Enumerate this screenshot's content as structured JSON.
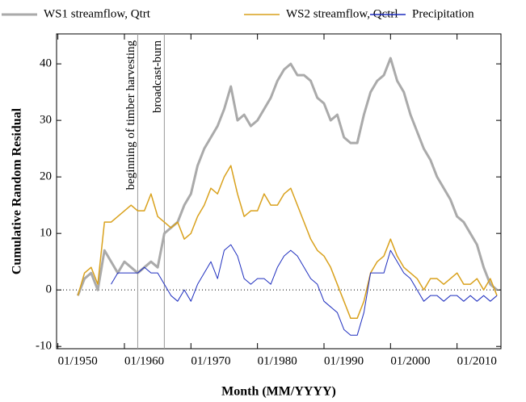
{
  "chart_data": {
    "type": "line",
    "y_label": "Cumulative Random Residual",
    "x_label": "Month (MM/YYYY)",
    "xlim": [
      1949.8,
      2016.6
    ],
    "ylim": [
      -10.4,
      45.3
    ],
    "xticks": [
      {
        "value": 1950,
        "label": "01/1950"
      },
      {
        "value": 1960,
        "label": "01/1960"
      },
      {
        "value": 1970,
        "label": "01/1970"
      },
      {
        "value": 1980,
        "label": "01/1980"
      },
      {
        "value": 1990,
        "label": "01/1990"
      },
      {
        "value": 2000,
        "label": "01/2000"
      },
      {
        "value": 2010,
        "label": "01/2010"
      }
    ],
    "yticks": [
      -10,
      0,
      10,
      20,
      30,
      40
    ],
    "x": [
      1953,
      1954,
      1955,
      1956,
      1957,
      1958,
      1959,
      1960,
      1961,
      1962,
      1963,
      1964,
      1965,
      1966,
      1967,
      1968,
      1969,
      1970,
      1971,
      1972,
      1973,
      1974,
      1975,
      1976,
      1977,
      1978,
      1979,
      1980,
      1981,
      1982,
      1983,
      1984,
      1985,
      1986,
      1987,
      1988,
      1989,
      1990,
      1991,
      1992,
      1993,
      1994,
      1995,
      1996,
      1997,
      1998,
      1999,
      2000,
      2001,
      2002,
      2003,
      2004,
      2005,
      2006,
      2007,
      2008,
      2009,
      2010,
      2011,
      2012,
      2013,
      2014,
      2015,
      2016
    ],
    "series": [
      {
        "name": "WS1 streamflow, Qtrt",
        "color": "#aaaaaa",
        "width": 3,
        "values": [
          -1,
          2,
          3,
          0,
          7,
          5,
          3,
          5,
          4,
          3,
          4,
          5,
          4,
          10,
          11,
          12,
          15,
          17,
          22,
          25,
          27,
          29,
          32,
          36,
          30,
          31,
          29,
          30,
          32,
          34,
          37,
          39,
          40,
          38,
          38,
          37,
          34,
          33,
          30,
          31,
          27,
          26,
          26,
          31,
          35,
          37,
          38,
          41,
          37,
          35,
          31,
          28,
          25,
          23,
          20,
          18,
          16,
          13,
          12,
          10,
          8,
          4,
          1,
          0
        ]
      },
      {
        "name": "WS2 streamflow, Qctrl",
        "color": "#d9a11c",
        "width": 1.5,
        "values": [
          -1,
          3,
          4,
          1,
          12,
          12,
          13,
          14,
          15,
          14,
          14,
          17,
          13,
          12,
          11,
          12,
          9,
          10,
          13,
          15,
          18,
          17,
          20,
          22,
          17,
          13,
          14,
          14,
          17,
          15,
          15,
          17,
          18,
          15,
          12,
          9,
          7,
          6,
          4,
          1,
          -2,
          -5,
          -5,
          -2,
          3,
          5,
          6,
          9,
          6,
          4,
          3,
          2,
          0,
          2,
          2,
          1,
          2,
          3,
          1,
          1,
          2,
          0,
          2,
          -1
        ]
      },
      {
        "name": "Precipitation",
        "color": "#1f2fbf",
        "width": 1,
        "values": [
          null,
          null,
          null,
          null,
          null,
          1,
          3,
          3,
          3,
          3,
          4,
          3,
          3,
          1,
          -1,
          -2,
          0,
          -2,
          1,
          3,
          5,
          2,
          7,
          8,
          6,
          2,
          1,
          2,
          2,
          1,
          4,
          6,
          7,
          6,
          4,
          2,
          1,
          -2,
          -3,
          -4,
          -7,
          -8,
          -8,
          -4,
          3,
          3,
          3,
          7,
          5,
          3,
          2,
          0,
          -2,
          -1,
          -1,
          -2,
          -1,
          -1,
          -2,
          -1,
          -2,
          -1,
          -2,
          -1
        ]
      }
    ],
    "annotations": [
      {
        "text": "beginning of timber harvesting",
        "x": 1962
      },
      {
        "text": "broadcast-burn",
        "x": 1966
      }
    ]
  }
}
